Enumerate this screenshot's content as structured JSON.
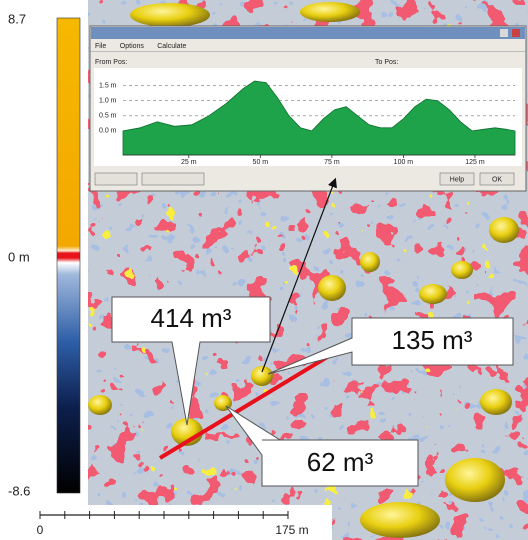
{
  "colorbar": {
    "max_label": "8.7",
    "zero_label": "0 m",
    "min_label": "-8.6"
  },
  "scale_bar": {
    "start_label": "0",
    "end_label": "175 m"
  },
  "profile_window": {
    "menu": [
      "File",
      "Options",
      "Calculate"
    ],
    "from_label": "From Pos:",
    "to_label": "To Pos:",
    "buttons": [
      "Help",
      "OK"
    ],
    "profile": {
      "type": "area",
      "color": "#1fa34a",
      "x": [
        2,
        8,
        14,
        20,
        26,
        32,
        38,
        44,
        48,
        52,
        56,
        60,
        64,
        68,
        72,
        76,
        80,
        84,
        88,
        92,
        96,
        100,
        104,
        108,
        112,
        116,
        120,
        124,
        128,
        132,
        136,
        139
      ],
      "values": [
        0.0,
        0.1,
        0.3,
        0.15,
        0.2,
        0.5,
        0.9,
        1.4,
        1.65,
        1.6,
        1.1,
        0.5,
        0.1,
        0.0,
        0.4,
        0.7,
        0.8,
        0.5,
        0.2,
        0.1,
        0.1,
        0.4,
        0.8,
        1.05,
        1.0,
        0.7,
        0.3,
        0.0,
        0.05,
        0.1,
        0.05,
        0.0
      ],
      "xlim": [
        2,
        139
      ],
      "ylim": [
        -0.8,
        1.95
      ],
      "xticks": [
        {
          "value": 25,
          "label": "25 m"
        },
        {
          "value": 50,
          "label": "50 m"
        },
        {
          "value": 75,
          "label": "75 m"
        },
        {
          "value": 100,
          "label": "100 m"
        },
        {
          "value": 125,
          "label": "125 m"
        }
      ],
      "yticks": [
        {
          "value": 1.5,
          "label": "1.5 m"
        },
        {
          "value": 1.0,
          "label": "1.0 m"
        },
        {
          "value": 0.5,
          "label": "0.5 m"
        },
        {
          "value": 0,
          "label": "0.0 m"
        }
      ],
      "grid": true
    }
  },
  "callouts": [
    {
      "label": "414 m³"
    },
    {
      "label": "135 m³"
    },
    {
      "label": "62 m³"
    }
  ]
}
